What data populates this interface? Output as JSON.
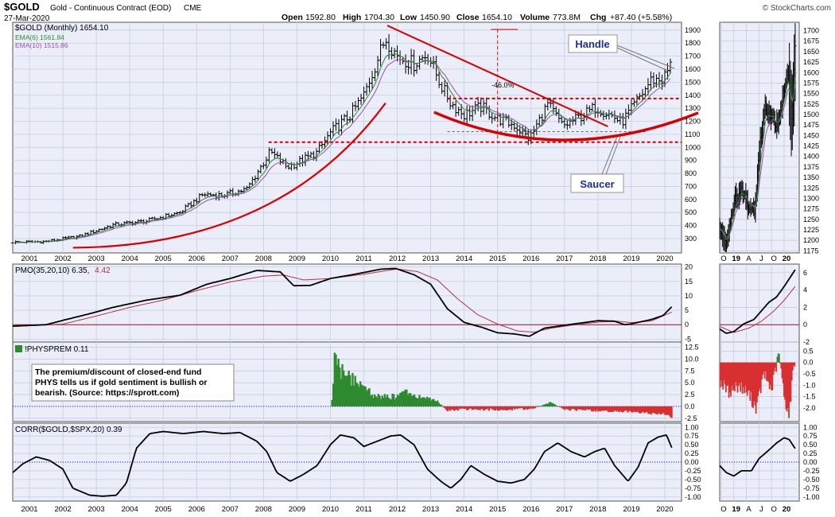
{
  "header": {
    "symbol": "$GOLD",
    "name": "Gold - Continuous Contract (EOD)",
    "exchange": "CME",
    "date": "27-Mar-2020",
    "open_label": "Open",
    "open": "1592.80",
    "high_label": "High",
    "high": "1704.30",
    "low_label": "Low",
    "low": "1450.90",
    "close_label": "Close",
    "close": "1654.10",
    "volume_label": "Volume",
    "volume": "773.8M",
    "chg_label": "Chg",
    "chg": "+87.40 (+5.58%)",
    "watermark": "© StockCharts.com"
  },
  "legend": {
    "price": "$GOLD (Monthly) 1654.10",
    "ema6": "EMA(6) 1561.84",
    "ema10": "EMA(10) 1515.86",
    "pmo_prefix": "PMO(35,20,10) 6.35,",
    "pmo_signal": "4.42",
    "physprem": "!PHYSPREM 0.11",
    "corr": "CORR($GOLD,$SPX,20) 0.39"
  },
  "annotations": {
    "handle": "Handle",
    "saucer": "Saucer",
    "decline": "-46.0%",
    "note_line1": "The premium/discount of closed-end fund",
    "note_line2": "PHYS tells us if gold sentiment is bullish or",
    "note_line3": "bearish. (Source: https://sprott.com)"
  },
  "colors": {
    "panel_bg": "#ebeef8",
    "grid": "#c6cde0",
    "ema6": "#2e8b2e",
    "ema10": "#9a4fb8",
    "red": "#d80000",
    "green_bar": "#2f8a2f",
    "red_bar": "#d83030",
    "label_blue": "#1a2fa0",
    "pmo_signal": "#b0304a"
  },
  "chart_data": [
    {
      "type": "ohlc",
      "panel": "main-price",
      "x_ticks": [
        "2001",
        "2002",
        "2003",
        "2004",
        "2005",
        "2006",
        "2007",
        "2008",
        "2009",
        "2010",
        "2011",
        "2012",
        "2013",
        "2014",
        "2015",
        "2016",
        "2017",
        "2018",
        "2019",
        "2020"
      ],
      "y_ticks": [
        300,
        400,
        500,
        600,
        700,
        800,
        900,
        1000,
        1100,
        1200,
        1300,
        1400,
        1500,
        1600,
        1700,
        1800,
        1900
      ],
      "ylim": [
        190,
        1960
      ],
      "close_anchors": [
        [
          2000.5,
          272
        ],
        [
          2001.5,
          278
        ],
        [
          2002.5,
          318
        ],
        [
          2003.5,
          405
        ],
        [
          2004.5,
          435
        ],
        [
          2005.5,
          500
        ],
        [
          2006.2,
          640
        ],
        [
          2006.8,
          632
        ],
        [
          2007.5,
          680
        ],
        [
          2008.2,
          965
        ],
        [
          2008.7,
          850
        ],
        [
          2009.0,
          880
        ],
        [
          2009.6,
          960
        ],
        [
          2010.0,
          1110
        ],
        [
          2010.6,
          1250
        ],
        [
          2011.0,
          1400
        ],
        [
          2011.65,
          1840
        ],
        [
          2012.0,
          1700
        ],
        [
          2012.5,
          1640
        ],
        [
          2012.9,
          1720
        ],
        [
          2013.3,
          1480
        ],
        [
          2013.6,
          1340
        ],
        [
          2014.0,
          1250
        ],
        [
          2014.5,
          1310
        ],
        [
          2015.0,
          1220
        ],
        [
          2015.5,
          1170
        ],
        [
          2015.95,
          1065
        ],
        [
          2016.5,
          1330
        ],
        [
          2016.95,
          1160
        ],
        [
          2017.5,
          1240
        ],
        [
          2017.95,
          1310
        ],
        [
          2018.5,
          1230
        ],
        [
          2018.7,
          1190
        ],
        [
          2019.0,
          1290
        ],
        [
          2019.6,
          1520
        ],
        [
          2019.95,
          1520
        ],
        [
          2020.22,
          1654
        ]
      ],
      "ema6_last": 1561.84,
      "ema10_last": 1515.86,
      "levels": [
        1040,
        1375
      ],
      "annotations": [
        "Handle",
        "Saucer",
        "-46.0%"
      ]
    },
    {
      "type": "ohlc",
      "panel": "zoom-price",
      "x_ticks": [
        "O",
        "19",
        "A",
        "J",
        "O",
        "20"
      ],
      "y_ticks": [
        1175,
        1200,
        1225,
        1250,
        1275,
        1300,
        1325,
        1350,
        1375,
        1400,
        1425,
        1450,
        1475,
        1500,
        1525,
        1550,
        1575,
        1600,
        1625,
        1650,
        1675,
        1700
      ],
      "ylim": [
        1170,
        1720
      ]
    },
    {
      "type": "line",
      "panel": "pmo",
      "series": [
        "PMO",
        "Signal"
      ],
      "pmo_last": 6.35,
      "signal_last": 4.42,
      "y_ticks": [
        -5,
        0,
        5,
        10,
        15,
        20
      ],
      "ylim": [
        -6,
        21
      ],
      "pmo_anchors": [
        [
          2000.5,
          -0.5
        ],
        [
          2001.5,
          0.0
        ],
        [
          2002.0,
          1.5
        ],
        [
          2002.8,
          3.8
        ],
        [
          2003.5,
          6.0
        ],
        [
          2004.5,
          8.5
        ],
        [
          2005.5,
          10.2
        ],
        [
          2006.3,
          14.0
        ],
        [
          2007.0,
          16.0
        ],
        [
          2007.8,
          18.8
        ],
        [
          2008.5,
          18.3
        ],
        [
          2008.9,
          13.5
        ],
        [
          2009.4,
          13.6
        ],
        [
          2010.0,
          16.0
        ],
        [
          2010.6,
          17.2
        ],
        [
          2011.5,
          19.2
        ],
        [
          2011.95,
          19.5
        ],
        [
          2012.5,
          17.3
        ],
        [
          2013.0,
          14.0
        ],
        [
          2013.5,
          5.5
        ],
        [
          2014.0,
          0.8
        ],
        [
          2014.5,
          -0.8
        ],
        [
          2015.0,
          -2.8
        ],
        [
          2015.5,
          -3.2
        ],
        [
          2015.95,
          -4.0
        ],
        [
          2016.4,
          -1.2
        ],
        [
          2017.0,
          -0.2
        ],
        [
          2017.5,
          0.6
        ],
        [
          2018.0,
          1.4
        ],
        [
          2018.5,
          1.2
        ],
        [
          2018.8,
          0.0
        ],
        [
          2019.0,
          0.3
        ],
        [
          2019.6,
          1.8
        ],
        [
          2019.95,
          3.2
        ],
        [
          2020.22,
          6.35
        ]
      ],
      "signal_anchors": [
        [
          2000.5,
          -0.6
        ],
        [
          2002.0,
          0.2
        ],
        [
          2003.0,
          3.0
        ],
        [
          2004.0,
          6.0
        ],
        [
          2005.0,
          8.5
        ],
        [
          2006.0,
          11.8
        ],
        [
          2007.0,
          14.8
        ],
        [
          2008.0,
          16.8
        ],
        [
          2008.6,
          17.2
        ],
        [
          2009.2,
          15.5
        ],
        [
          2010.0,
          16.0
        ],
        [
          2011.0,
          17.5
        ],
        [
          2012.0,
          19.3
        ],
        [
          2012.6,
          18.4
        ],
        [
          2013.2,
          15.5
        ],
        [
          2013.8,
          9.0
        ],
        [
          2014.4,
          3.5
        ],
        [
          2015.0,
          0.2
        ],
        [
          2015.6,
          -2.2
        ],
        [
          2016.1,
          -2.6
        ],
        [
          2016.6,
          -1.2
        ],
        [
          2017.2,
          -0.2
        ],
        [
          2018.0,
          0.9
        ],
        [
          2018.6,
          1.2
        ],
        [
          2019.0,
          0.7
        ],
        [
          2019.6,
          1.3
        ],
        [
          2020.22,
          4.42
        ]
      ]
    },
    {
      "type": "bar",
      "panel": "physprem",
      "value_last": 0.11,
      "y_ticks": [
        -2.5,
        0.0,
        2.5,
        5.0,
        7.5,
        10.0,
        12.5
      ],
      "ylim": [
        -3.2,
        13.6
      ],
      "bar_anchors": [
        [
          2010.0,
          0.0
        ],
        [
          2010.05,
          1.8
        ],
        [
          2010.15,
          12.5
        ],
        [
          2010.25,
          10.5
        ],
        [
          2010.35,
          8.0
        ],
        [
          2010.5,
          6.5
        ],
        [
          2010.7,
          5.0
        ],
        [
          2010.9,
          5.8
        ],
        [
          2011.1,
          3.5
        ],
        [
          2011.3,
          2.5
        ],
        [
          2011.6,
          2.0
        ],
        [
          2012.0,
          2.0
        ],
        [
          2012.3,
          2.8
        ],
        [
          2012.6,
          1.8
        ],
        [
          2012.9,
          1.8
        ],
        [
          2013.2,
          1.0
        ],
        [
          2013.5,
          -0.8
        ],
        [
          2014.0,
          -0.6
        ],
        [
          2015.0,
          -0.7
        ],
        [
          2016.0,
          -0.5
        ],
        [
          2016.6,
          0.8
        ],
        [
          2017.0,
          -0.7
        ],
        [
          2018.0,
          -0.9
        ],
        [
          2019.0,
          -1.1
        ],
        [
          2019.6,
          -1.5
        ],
        [
          2020.0,
          -1.6
        ],
        [
          2020.2,
          -2.3
        ]
      ]
    },
    {
      "type": "line",
      "panel": "corr",
      "value_last": 0.39,
      "y_ticks": [
        -1.0,
        -0.75,
        -0.5,
        -0.25,
        0.0,
        0.25,
        0.5,
        0.75,
        1.0
      ],
      "ylim": [
        -1.12,
        1.12
      ],
      "anchors": [
        [
          2000.5,
          -0.3
        ],
        [
          2000.8,
          -0.05
        ],
        [
          2001.2,
          0.15
        ],
        [
          2001.6,
          0.05
        ],
        [
          2002.0,
          -0.2
        ],
        [
          2002.3,
          -0.75
        ],
        [
          2002.8,
          -0.95
        ],
        [
          2003.2,
          -0.98
        ],
        [
          2003.6,
          -0.95
        ],
        [
          2003.9,
          -0.6
        ],
        [
          2004.2,
          0.4
        ],
        [
          2004.6,
          0.82
        ],
        [
          2005.0,
          0.88
        ],
        [
          2005.6,
          0.82
        ],
        [
          2006.2,
          0.88
        ],
        [
          2006.8,
          0.82
        ],
        [
          2007.3,
          0.85
        ],
        [
          2007.8,
          0.6
        ],
        [
          2008.1,
          0.3
        ],
        [
          2008.4,
          -0.3
        ],
        [
          2008.8,
          -0.55
        ],
        [
          2009.2,
          -0.35
        ],
        [
          2009.6,
          -0.1
        ],
        [
          2010.0,
          0.5
        ],
        [
          2010.3,
          0.78
        ],
        [
          2010.7,
          0.7
        ],
        [
          2011.0,
          0.45
        ],
        [
          2011.4,
          0.6
        ],
        [
          2011.8,
          0.75
        ],
        [
          2012.1,
          0.78
        ],
        [
          2012.5,
          0.5
        ],
        [
          2012.9,
          -0.2
        ],
        [
          2013.3,
          -0.55
        ],
        [
          2013.6,
          -0.75
        ],
        [
          2013.9,
          -0.5
        ],
        [
          2014.2,
          -0.1
        ],
        [
          2014.6,
          -0.35
        ],
        [
          2015.0,
          -0.55
        ],
        [
          2015.4,
          -0.6
        ],
        [
          2015.8,
          -0.5
        ],
        [
          2016.1,
          -0.2
        ],
        [
          2016.4,
          0.3
        ],
        [
          2016.8,
          0.55
        ],
        [
          2017.2,
          0.3
        ],
        [
          2017.6,
          0.15
        ],
        [
          2017.9,
          0.3
        ],
        [
          2018.2,
          0.4
        ],
        [
          2018.5,
          -0.1
        ],
        [
          2018.9,
          -0.55
        ],
        [
          2019.2,
          -0.15
        ],
        [
          2019.5,
          0.55
        ],
        [
          2019.8,
          0.72
        ],
        [
          2020.05,
          0.78
        ],
        [
          2020.22,
          0.39
        ]
      ]
    }
  ]
}
